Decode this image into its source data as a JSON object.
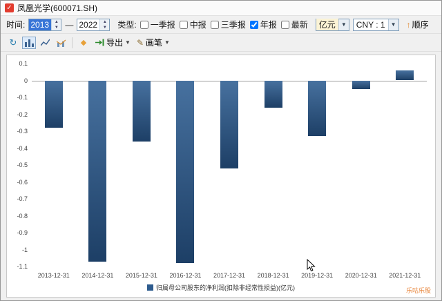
{
  "window": {
    "title": "凤凰光学(600071.SH)"
  },
  "toolbar": {
    "time_label": "时间:",
    "year_from": "2013",
    "dash": "—",
    "year_to": "2022",
    "type_label": "类型:",
    "report_types": [
      {
        "label": "一季报",
        "checked": false
      },
      {
        "label": "中报",
        "checked": false
      },
      {
        "label": "三季报",
        "checked": false
      },
      {
        "label": "年报",
        "checked": true
      },
      {
        "label": "最新",
        "checked": false
      }
    ],
    "unit_select": "亿元",
    "currency_select": "CNY : 1",
    "order_button": "顺序"
  },
  "toolbar2": {
    "export_label": "导出",
    "brush_label": "画笔"
  },
  "chart_data": {
    "type": "bar",
    "categories": [
      "2013-12-31",
      "2014-12-31",
      "2015-12-31",
      "2016-12-31",
      "2017-12-31",
      "2018-12-31",
      "2019-12-31",
      "2020-12-31",
      "2021-12-31"
    ],
    "series": [
      {
        "name": "归属母公司股东的净利润(扣除非经常性损益)(亿元)",
        "values": [
          -0.28,
          -1.07,
          -0.36,
          -1.08,
          -0.52,
          -0.16,
          -0.33,
          -0.05,
          0.06
        ]
      }
    ],
    "title": "",
    "xlabel": "",
    "ylabel": "",
    "ylim": [
      -1.1,
      0.1
    ],
    "yticks": [
      0.1,
      0,
      -0.1,
      -0.2,
      -0.3,
      -0.4,
      -0.5,
      -0.6,
      -0.7,
      -0.8,
      -0.9,
      -1,
      -1.1
    ],
    "ytick_labels": [
      "0.1",
      "0",
      "-0.1",
      "-0.2",
      "-0.3",
      "-0.4",
      "-0.5",
      "-0.6",
      "-0.7",
      "-0.8",
      "-0.9",
      "-1",
      "-1.1"
    ],
    "grid": false,
    "legend_position": "bottom",
    "bar_color_top": "#47719f",
    "bar_color_bottom": "#1d3f66"
  },
  "watermark": "乐咕乐股"
}
